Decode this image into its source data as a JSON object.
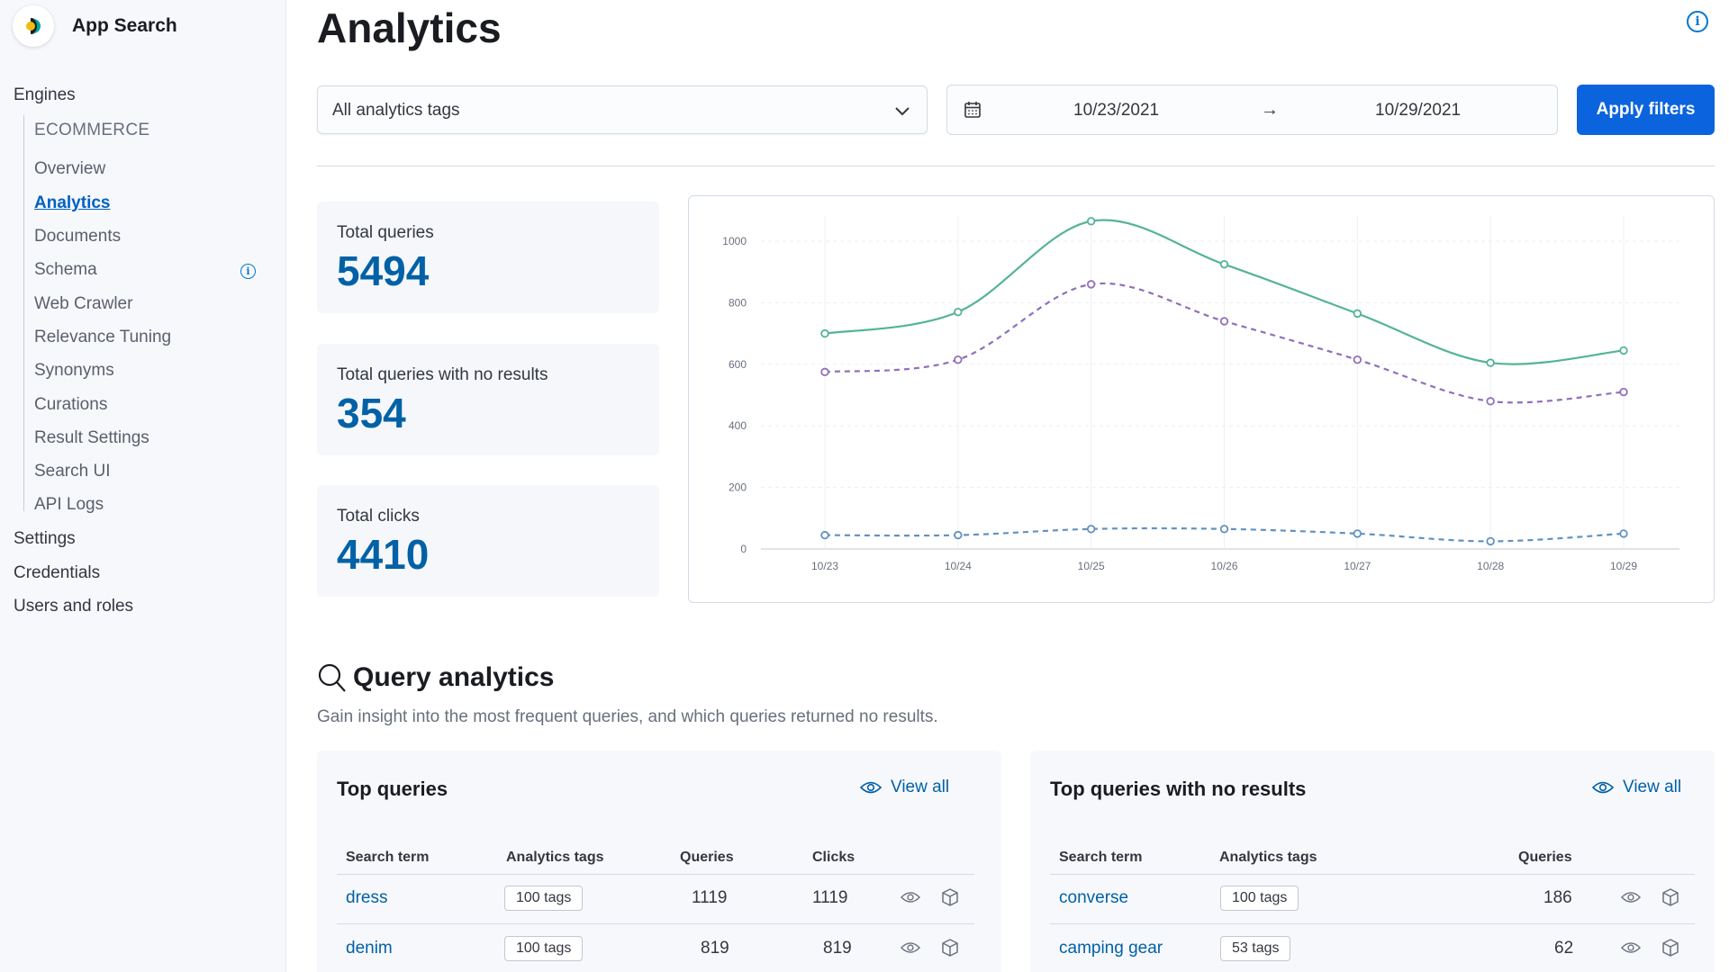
{
  "app": {
    "title": "App Search"
  },
  "sidebar": {
    "top_items": [
      "Engines",
      "Settings",
      "Credentials",
      "Users and roles"
    ],
    "engine_name": "ECOMMERCE",
    "engine_items": [
      {
        "label": "Overview",
        "active": false
      },
      {
        "label": "Analytics",
        "active": true
      },
      {
        "label": "Documents",
        "active": false
      },
      {
        "label": "Schema",
        "active": false,
        "has_info_icon": true
      },
      {
        "label": "Web Crawler",
        "active": false
      },
      {
        "label": "Relevance Tuning",
        "active": false
      },
      {
        "label": "Synonyms",
        "active": false
      },
      {
        "label": "Curations",
        "active": false
      },
      {
        "label": "Result Settings",
        "active": false
      },
      {
        "label": "Search UI",
        "active": false
      },
      {
        "label": "API Logs",
        "active": false
      }
    ]
  },
  "page": {
    "title": "Analytics"
  },
  "filters": {
    "tags_value": "All analytics tags",
    "start_date": "10/23/2021",
    "end_date": "10/29/2021",
    "apply_label": "Apply filters"
  },
  "stats": [
    {
      "label": "Total queries",
      "value": "5494"
    },
    {
      "label": "Total queries with no results",
      "value": "354"
    },
    {
      "label": "Total clicks",
      "value": "4410"
    }
  ],
  "chart_data": {
    "type": "line",
    "categories": [
      "10/23",
      "10/24",
      "10/25",
      "10/26",
      "10/27",
      "10/28",
      "10/29"
    ],
    "ylim": [
      0,
      1000
    ],
    "yticks": [
      0,
      200,
      400,
      600,
      800,
      1000
    ],
    "grid": true,
    "series": [
      {
        "values": [
          700,
          770,
          1065,
          925,
          765,
          605,
          645
        ],
        "color": "#54b399",
        "style": "solid"
      },
      {
        "values": [
          575,
          615,
          860,
          740,
          615,
          480,
          510
        ],
        "color": "#9170b8",
        "style": "dashed"
      },
      {
        "values": [
          45,
          45,
          65,
          65,
          50,
          25,
          50
        ],
        "color": "#6092c0",
        "style": "dashed"
      }
    ]
  },
  "query_analytics": {
    "title": "Query analytics",
    "description": "Gain insight into the most frequent queries, and which queries returned no results.",
    "top_queries": {
      "title": "Top queries",
      "view_all": "View all",
      "columns": [
        "Search term",
        "Analytics tags",
        "Queries",
        "Clicks"
      ],
      "rows": [
        {
          "term": "dress",
          "tags": "100 tags",
          "queries": "1119",
          "clicks": "1119"
        },
        {
          "term": "denim",
          "tags": "100 tags",
          "queries": "819",
          "clicks": "819"
        }
      ]
    },
    "no_results": {
      "title": "Top queries with no results",
      "view_all": "View all",
      "columns": [
        "Search term",
        "Analytics tags",
        "Queries"
      ],
      "rows": [
        {
          "term": "converse",
          "tags": "100 tags",
          "queries": "186"
        },
        {
          "term": "camping gear",
          "tags": "53 tags",
          "queries": "62"
        }
      ]
    }
  }
}
